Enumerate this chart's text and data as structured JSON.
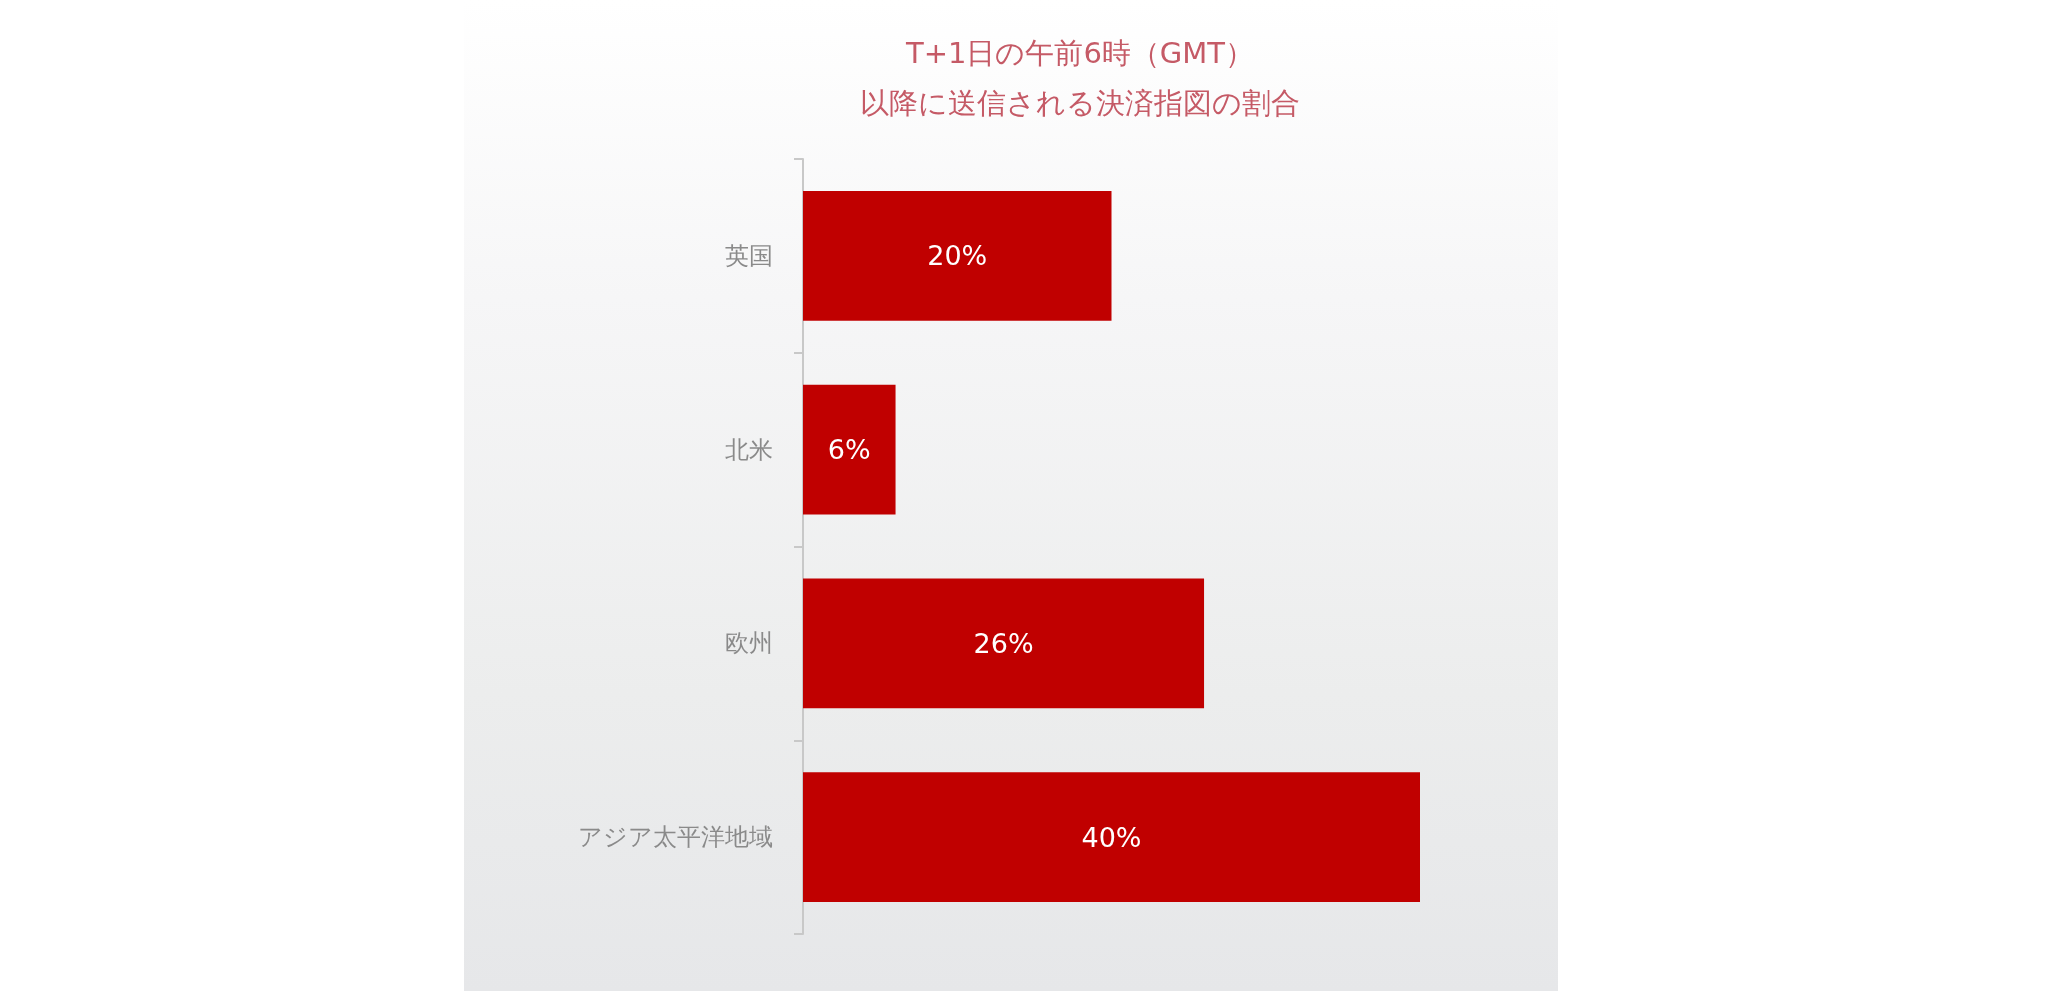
{
  "chart_data": {
    "type": "bar",
    "orientation": "horizontal",
    "title": "T+1日の午前6時（GMT）",
    "subtitle": "以降に送信される決済指図の割合",
    "categories": [
      "英国",
      "北米",
      "欧州",
      "アジア太平洋地域"
    ],
    "values": [
      20,
      6,
      26,
      40
    ],
    "value_labels": [
      "20%",
      "6%",
      "26%",
      "40%"
    ],
    "color": "#c00000",
    "tick_labels": "y"
  }
}
